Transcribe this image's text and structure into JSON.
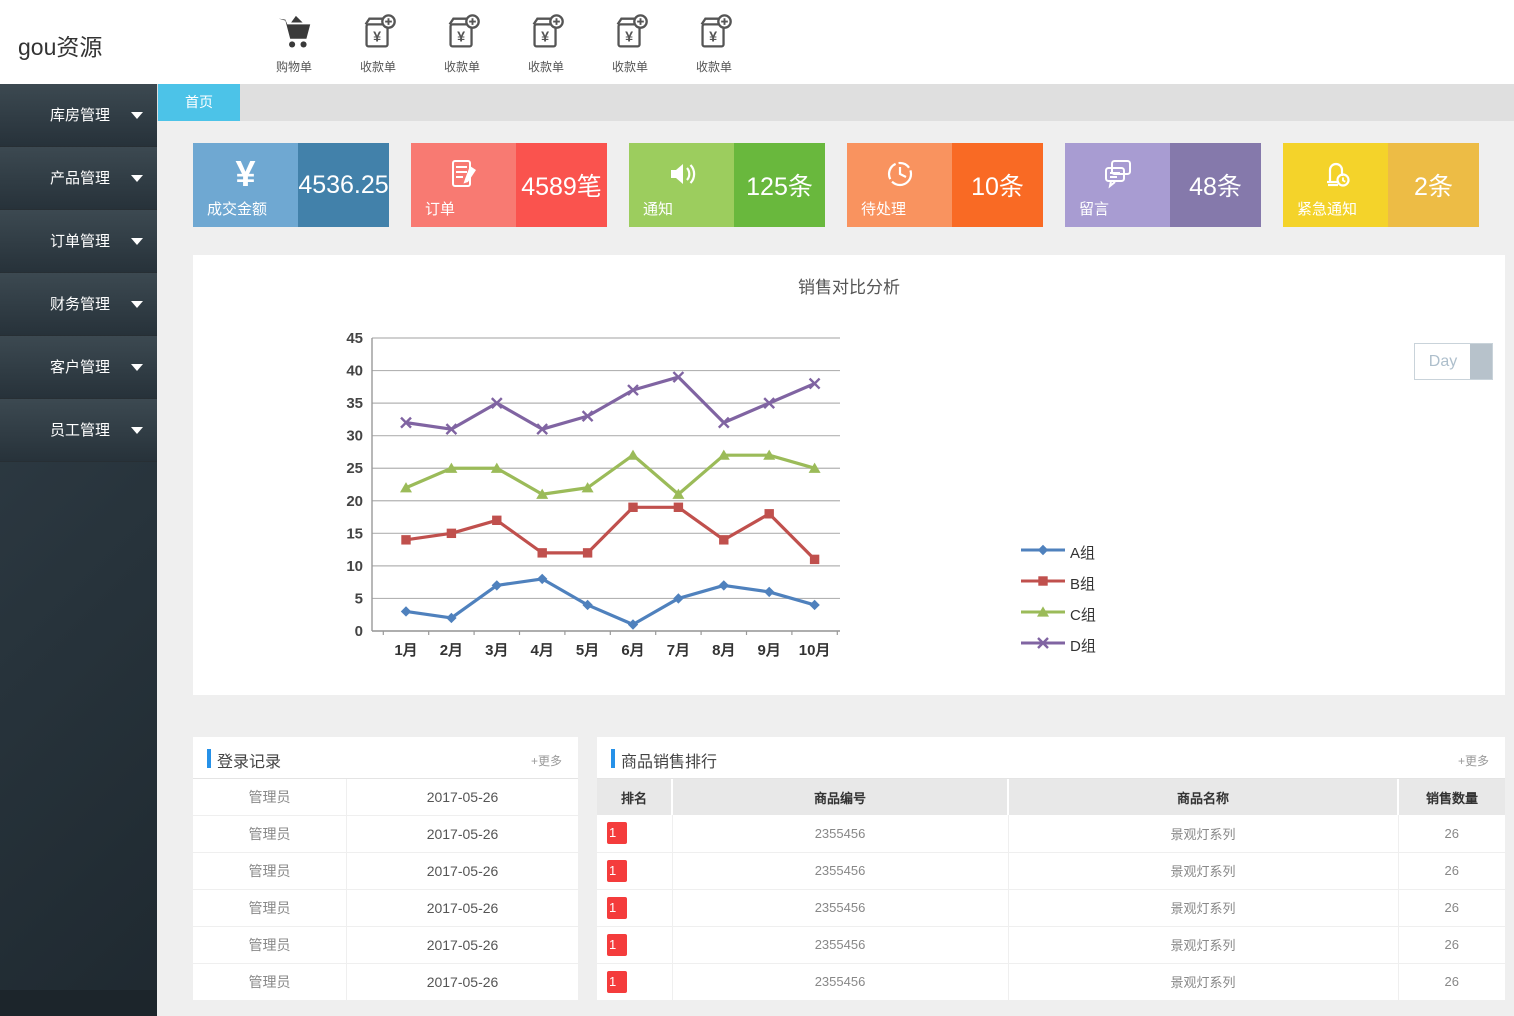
{
  "theme": {
    "accent": "#4cc3e8",
    "panel_title_bar": "#2691e8",
    "rank_badge": "#f43c3c",
    "sidebar_top": "#33404a",
    "sidebar_bottom": "#1f2930"
  },
  "header": {
    "logo": "gou资源",
    "toolbar": [
      {
        "icon": "cart-icon",
        "label": "购物单"
      },
      {
        "icon": "receipt-icon",
        "label": "收款单"
      },
      {
        "icon": "receipt-icon",
        "label": "收款单"
      },
      {
        "icon": "receipt-icon",
        "label": "收款单"
      },
      {
        "icon": "receipt-icon",
        "label": "收款单"
      },
      {
        "icon": "receipt-icon",
        "label": "收款单"
      }
    ]
  },
  "sidebar": {
    "items": [
      {
        "label": "库房管理"
      },
      {
        "label": "产品管理"
      },
      {
        "label": "订单管理"
      },
      {
        "label": "财务管理"
      },
      {
        "label": "客户管理"
      },
      {
        "label": "员工管理"
      }
    ]
  },
  "tabs": {
    "active": "首页"
  },
  "stat_cards": [
    {
      "icon": "yuan-icon",
      "label": "成交金额",
      "value": "4536.25",
      "color_left": "#6fa8d2",
      "color_right": "#4281aa"
    },
    {
      "icon": "order-icon",
      "label": "订单",
      "value": "4589笔",
      "color_left": "#f87a72",
      "color_right": "#fa534e"
    },
    {
      "icon": "speaker-icon",
      "label": "通知",
      "value": "125条",
      "color_left": "#9ccd5e",
      "color_right": "#69b83d"
    },
    {
      "icon": "clock-icon",
      "label": "待处理",
      "value": "10条",
      "color_left": "#f9935f",
      "color_right": "#f96a24"
    },
    {
      "icon": "chat-icon",
      "label": "留言",
      "value": "48条",
      "color_left": "#a89cd2",
      "color_right": "#8579ab"
    },
    {
      "icon": "alarm-icon",
      "label": "紧急通知",
      "value": "2条",
      "color_left": "#f4d32a",
      "color_right": "#edbc45"
    }
  ],
  "chart_data": {
    "type": "line",
    "title": "销售对比分析",
    "period_button": "Day",
    "categories": [
      "1月",
      "2月",
      "3月",
      "4月",
      "5月",
      "6月",
      "7月",
      "8月",
      "9月",
      "10月"
    ],
    "series": [
      {
        "name": "A组",
        "color": "#4f81bd",
        "marker": "diamond",
        "values": [
          3,
          2,
          7,
          8,
          4,
          1,
          5,
          7,
          6,
          4
        ]
      },
      {
        "name": "B组",
        "color": "#c0504d",
        "marker": "square",
        "values": [
          14,
          15,
          17,
          12,
          12,
          19,
          19,
          14,
          18,
          11
        ]
      },
      {
        "name": "C组",
        "color": "#9bbb59",
        "marker": "triangle",
        "values": [
          22,
          25,
          25,
          21,
          22,
          27,
          21,
          27,
          27,
          25
        ]
      },
      {
        "name": "D组",
        "color": "#8064a2",
        "marker": "x",
        "values": [
          32,
          31,
          35,
          31,
          33,
          37,
          39,
          32,
          35,
          38
        ]
      }
    ],
    "ylim": [
      0,
      45
    ],
    "ytick_step": 5,
    "grid": true,
    "legend_position": "right"
  },
  "login_log": {
    "title": "登录记录",
    "more": "+更多",
    "rows": [
      {
        "user": "管理员",
        "date": "2017-05-26"
      },
      {
        "user": "管理员",
        "date": "2017-05-26"
      },
      {
        "user": "管理员",
        "date": "2017-05-26"
      },
      {
        "user": "管理员",
        "date": "2017-05-26"
      },
      {
        "user": "管理员",
        "date": "2017-05-26"
      },
      {
        "user": "管理员",
        "date": "2017-05-26"
      }
    ]
  },
  "sales_rank": {
    "title": "商品销售排行",
    "more": "+更多",
    "headers": [
      "排名",
      "商品编号",
      "商品名称",
      "销售数量"
    ],
    "rows": [
      {
        "rank": "1",
        "code": "2355456",
        "name": "景观灯系列",
        "qty": "26"
      },
      {
        "rank": "1",
        "code": "2355456",
        "name": "景观灯系列",
        "qty": "26"
      },
      {
        "rank": "1",
        "code": "2355456",
        "name": "景观灯系列",
        "qty": "26"
      },
      {
        "rank": "1",
        "code": "2355456",
        "name": "景观灯系列",
        "qty": "26"
      },
      {
        "rank": "1",
        "code": "2355456",
        "name": "景观灯系列",
        "qty": "26"
      }
    ]
  }
}
